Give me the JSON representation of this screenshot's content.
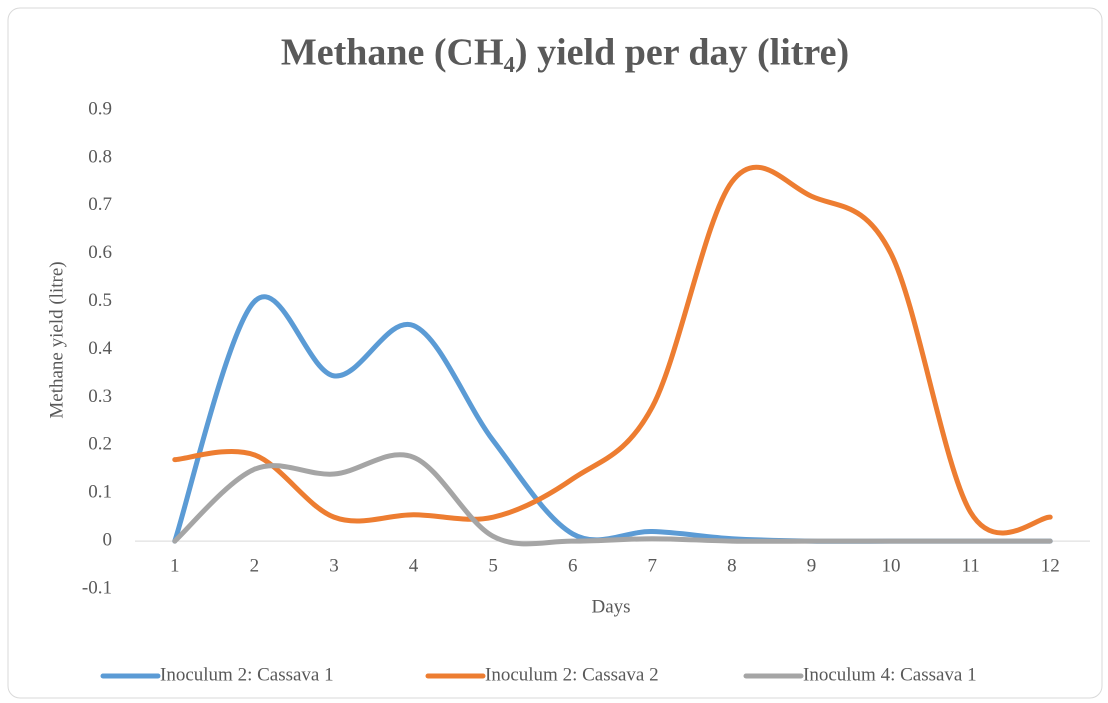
{
  "chart_data": {
    "type": "line",
    "title": "Methane (CH₄) yield per day (litre)",
    "x_label": "Days",
    "y_label": "Methane yield (litre)",
    "categories": [
      "1",
      "2",
      "3",
      "4",
      "5",
      "6",
      "7",
      "8",
      "9",
      "10",
      "11",
      "12"
    ],
    "series": [
      {
        "name": "Inoculum 2: Cassava 1",
        "color": "#5b9bd5",
        "values": [
          0,
          0.5,
          0.345,
          0.45,
          0.21,
          0.015,
          0.02,
          0.005,
          0,
          0,
          0,
          0
        ]
      },
      {
        "name": "Inoculum 2: Cassava 2",
        "color": "#ed7d31",
        "values": [
          0.17,
          0.18,
          0.05,
          0.055,
          0.05,
          0.13,
          0.28,
          0.75,
          0.72,
          0.6,
          0.06,
          0.05
        ]
      },
      {
        "name": "Inoculum 4: Cassava 1",
        "color": "#a5a5a5",
        "values": [
          0,
          0.15,
          0.14,
          0.175,
          0.01,
          0,
          0.005,
          0,
          0,
          0,
          0,
          0
        ]
      }
    ],
    "ylim": [
      -0.1,
      0.9
    ],
    "yticks": [
      -0.1,
      0,
      0.1,
      0.2,
      0.3,
      0.4,
      0.5,
      0.6,
      0.7,
      0.8,
      0.9
    ],
    "smooth": true,
    "legend": "bottom"
  }
}
